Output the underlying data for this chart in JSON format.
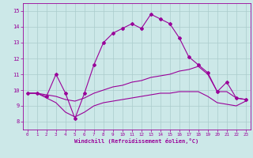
{
  "xlabel": "Windchill (Refroidissement éolien,°C)",
  "bg_color": "#cce8e8",
  "line_color": "#990099",
  "grid_color": "#aacccc",
  "ylim": [
    7.5,
    15.5
  ],
  "xlim": [
    -0.5,
    23.5
  ],
  "yticks": [
    8,
    9,
    10,
    11,
    12,
    13,
    14,
    15
  ],
  "xticks": [
    0,
    1,
    2,
    3,
    4,
    5,
    6,
    7,
    8,
    9,
    10,
    11,
    12,
    13,
    14,
    15,
    16,
    17,
    18,
    19,
    20,
    21,
    22,
    23
  ],
  "series1_x": [
    0,
    1,
    2,
    3,
    4,
    5,
    6,
    7,
    8,
    9,
    10,
    11,
    12,
    13,
    14,
    15,
    16,
    17,
    18,
    19,
    20,
    21,
    22,
    23
  ],
  "series1_y": [
    9.8,
    9.8,
    9.6,
    11.0,
    9.8,
    8.2,
    9.8,
    11.6,
    13.0,
    13.6,
    13.9,
    14.2,
    13.9,
    14.8,
    14.5,
    14.2,
    13.3,
    12.1,
    11.6,
    11.1,
    9.9,
    10.5,
    9.5,
    9.4
  ],
  "series2_x": [
    0,
    1,
    2,
    3,
    4,
    5,
    6,
    7,
    8,
    9,
    10,
    11,
    12,
    13,
    14,
    15,
    16,
    17,
    18,
    19,
    20,
    21,
    22,
    23
  ],
  "series2_y": [
    9.8,
    9.8,
    9.7,
    9.6,
    9.4,
    9.3,
    9.5,
    9.8,
    10.0,
    10.2,
    10.3,
    10.5,
    10.6,
    10.8,
    10.9,
    11.0,
    11.2,
    11.3,
    11.5,
    11.0,
    9.9,
    9.9,
    9.5,
    9.4
  ],
  "series3_x": [
    0,
    1,
    2,
    3,
    4,
    5,
    6,
    7,
    8,
    9,
    10,
    11,
    12,
    13,
    14,
    15,
    16,
    17,
    18,
    19,
    20,
    21,
    22,
    23
  ],
  "series3_y": [
    9.8,
    9.8,
    9.5,
    9.2,
    8.6,
    8.3,
    8.6,
    9.0,
    9.2,
    9.3,
    9.4,
    9.5,
    9.6,
    9.7,
    9.8,
    9.8,
    9.9,
    9.9,
    9.9,
    9.6,
    9.2,
    9.1,
    9.0,
    9.3
  ]
}
